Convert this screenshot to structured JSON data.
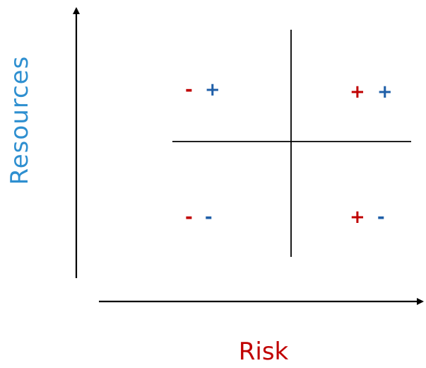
{
  "axes": {
    "y_label": "Resources",
    "x_label": "Risk"
  },
  "quadrants": {
    "top_left": {
      "risk_sign": "-",
      "resource_sign": "+"
    },
    "top_right": {
      "risk_sign": "+",
      "resource_sign": "+"
    },
    "bottom_left": {
      "risk_sign": "-",
      "resource_sign": "-"
    },
    "bottom_right": {
      "risk_sign": "+",
      "resource_sign": "-"
    }
  },
  "colors": {
    "risk": "#c00000",
    "resources": "#1f5fa8",
    "y_label": "#2e8fd0",
    "x_label": "#c00000",
    "lines": "#000000"
  }
}
